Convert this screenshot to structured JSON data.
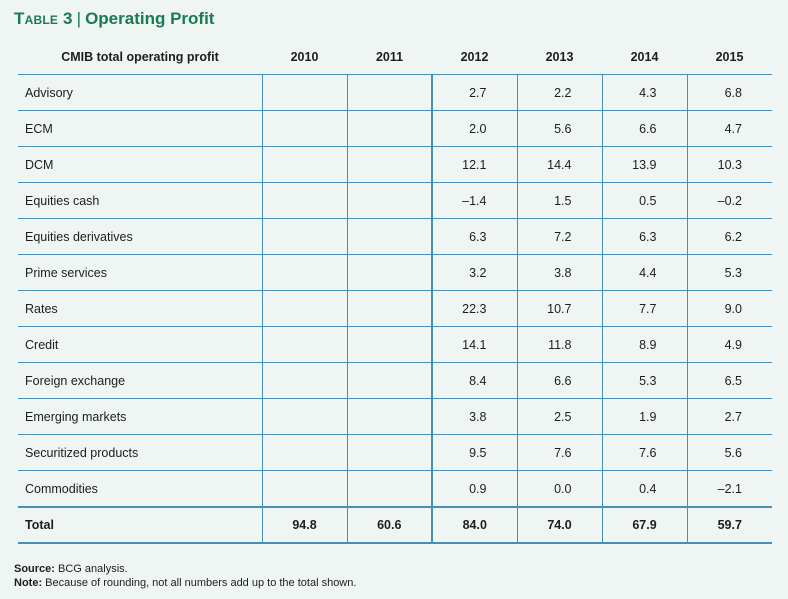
{
  "title": {
    "table_number": "Table 3",
    "text": "Operating Profit"
  },
  "table": {
    "columns": [
      "CMIB total operating profit",
      "2010",
      "2011",
      "2012",
      "2013",
      "2014",
      "2015"
    ],
    "rows": [
      {
        "label": "Advisory",
        "values": [
          "",
          "",
          "2.7",
          "2.2",
          "4.3",
          "6.8"
        ]
      },
      {
        "label": "ECM",
        "values": [
          "",
          "",
          "2.0",
          "5.6",
          "6.6",
          "4.7"
        ]
      },
      {
        "label": "DCM",
        "values": [
          "",
          "",
          "12.1",
          "14.4",
          "13.9",
          "10.3"
        ]
      },
      {
        "label": "Equities cash",
        "values": [
          "",
          "",
          "–1.4",
          "1.5",
          "0.5",
          "–0.2"
        ]
      },
      {
        "label": "Equities derivatives",
        "values": [
          "",
          "",
          "6.3",
          "7.2",
          "6.3",
          "6.2"
        ]
      },
      {
        "label": "Prime services",
        "values": [
          "",
          "",
          "3.2",
          "3.8",
          "4.4",
          "5.3"
        ]
      },
      {
        "label": "Rates",
        "values": [
          "",
          "",
          "22.3",
          "10.7",
          "7.7",
          "9.0"
        ]
      },
      {
        "label": "Credit",
        "values": [
          "",
          "",
          "14.1",
          "11.8",
          "8.9",
          "4.9"
        ]
      },
      {
        "label": "Foreign exchange",
        "values": [
          "",
          "",
          "8.4",
          "6.6",
          "5.3",
          "6.5"
        ]
      },
      {
        "label": "Emerging markets",
        "values": [
          "",
          "",
          "3.8",
          "2.5",
          "1.9",
          "2.7"
        ]
      },
      {
        "label": "Securitized products",
        "values": [
          "",
          "",
          "9.5",
          "7.6",
          "7.6",
          "5.6"
        ]
      },
      {
        "label": "Commodities",
        "values": [
          "",
          "",
          "0.9",
          "0.0",
          "0.4",
          "–2.1"
        ]
      }
    ],
    "total": {
      "label": "Total",
      "values": [
        "94.8",
        "60.6",
        "84.0",
        "74.0",
        "67.9",
        "59.7"
      ]
    }
  },
  "footnotes": {
    "source_label": "Source:",
    "source_text": " BCG analysis.",
    "note_label": "Note:",
    "note_text": " Because of rounding, not all numbers add up to the total shown."
  },
  "colors": {
    "title": "#1a7a52",
    "rule": "#4a8fb8",
    "background": "#eef5f2"
  }
}
